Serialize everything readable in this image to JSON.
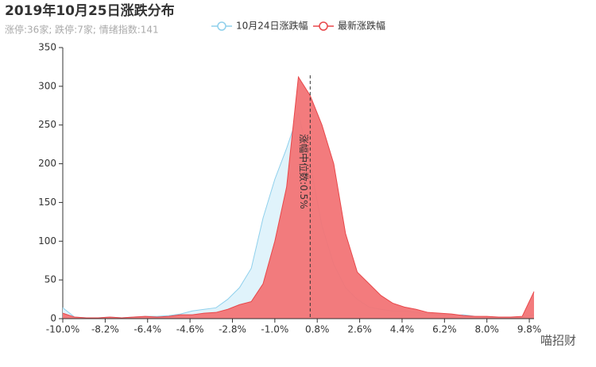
{
  "chart_data": {
    "type": "area",
    "title": "2019年10月25日涨跌分布",
    "subtitle": "涨停:36家; 跌停:7家; 情绪指数:141",
    "watermark": "喵招财",
    "x": [
      -10,
      -9.5,
      -9,
      -8.5,
      -8,
      -7.5,
      -7,
      -6.5,
      -6,
      -5.5,
      -5,
      -4.5,
      -4,
      -3.5,
      -3,
      -2.5,
      -2,
      -1.5,
      -1,
      -0.5,
      0,
      0.5,
      1,
      1.5,
      2,
      2.5,
      3,
      3.5,
      4,
      4.5,
      5,
      5.5,
      6,
      6.5,
      7,
      7.5,
      8,
      8.5,
      9,
      9.5,
      10
    ],
    "series": [
      {
        "name": "10月24日涨跌幅",
        "color": "#8fd0ec",
        "fill": "#e0f3fb",
        "values": [
          14,
          2,
          1,
          1,
          2,
          1,
          2,
          3,
          3,
          4,
          6,
          10,
          12,
          14,
          25,
          40,
          65,
          130,
          180,
          220,
          265,
          200,
          120,
          70,
          40,
          25,
          15,
          12,
          10,
          10,
          8,
          6,
          5,
          4,
          5,
          3,
          2,
          2,
          2,
          2,
          5
        ]
      },
      {
        "name": "最新涨跌幅",
        "color": "#e8474a",
        "fill": "#f27476",
        "values": [
          7,
          2,
          1,
          1,
          2,
          1,
          2,
          3,
          2,
          3,
          5,
          5,
          7,
          8,
          12,
          18,
          22,
          45,
          100,
          170,
          312,
          288,
          250,
          200,
          110,
          60,
          45,
          30,
          20,
          15,
          12,
          8,
          7,
          6,
          4,
          3,
          3,
          2,
          2,
          3,
          35
        ]
      }
    ],
    "median": {
      "value": 0.5,
      "label": "涨幅中位数:0.5%"
    },
    "xlim": [
      -10,
      10
    ],
    "xticks": [
      {
        "value": -10,
        "label": "-10.0%"
      },
      {
        "value": -8.2,
        "label": "-8.2%"
      },
      {
        "value": -6.4,
        "label": "-6.4%"
      },
      {
        "value": -4.6,
        "label": "-4.6%"
      },
      {
        "value": -2.8,
        "label": "-2.8%"
      },
      {
        "value": -1,
        "label": "-1.0%"
      },
      {
        "value": 0.8,
        "label": "0.8%"
      },
      {
        "value": 2.6,
        "label": "2.6%"
      },
      {
        "value": 4.4,
        "label": "4.4%"
      },
      {
        "value": 6.2,
        "label": "6.2%"
      },
      {
        "value": 8,
        "label": "8.0%"
      },
      {
        "value": 9.8,
        "label": "9.8%"
      }
    ],
    "ylim": [
      0,
      350
    ],
    "yticks": [
      0,
      50,
      100,
      150,
      200,
      250,
      300,
      350
    ]
  }
}
